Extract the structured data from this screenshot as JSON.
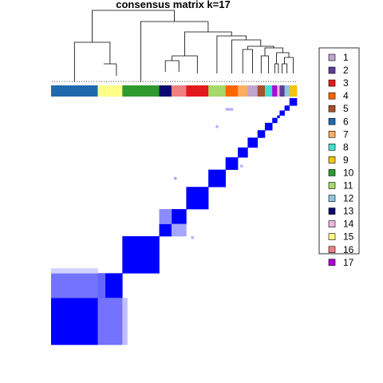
{
  "chart_data": {
    "type": "heatmap",
    "title": "consensus matrix k=17",
    "n_samples": 100,
    "value_range": [
      0,
      1
    ],
    "color_scale": {
      "low": "#ffffff",
      "high": "#0000ff"
    },
    "legend": {
      "placement": "right",
      "entries": [
        {
          "label": "1",
          "color": "#c2a5cf"
        },
        {
          "label": "2",
          "color": "#5e3c99"
        },
        {
          "label": "3",
          "color": "#e31a1c"
        },
        {
          "label": "4",
          "color": "#ff6600"
        },
        {
          "label": "5",
          "color": "#a6532b"
        },
        {
          "label": "6",
          "color": "#1f6aad"
        },
        {
          "label": "7",
          "color": "#fdae61"
        },
        {
          "label": "8",
          "color": "#40e0d0"
        },
        {
          "label": "9",
          "color": "#f1c40f"
        },
        {
          "label": "10",
          "color": "#2e9a2e"
        },
        {
          "label": "11",
          "color": "#a6d96a"
        },
        {
          "label": "12",
          "color": "#92c5de"
        },
        {
          "label": "13",
          "color": "#0a0a6e"
        },
        {
          "label": "14",
          "color": "#e7b8e0"
        },
        {
          "label": "15",
          "color": "#ffff88"
        },
        {
          "label": "16",
          "color": "#f08080"
        },
        {
          "label": "17",
          "color": "#b000d8"
        }
      ]
    },
    "cluster_order": [
      {
        "cluster": "6",
        "size": 19
      },
      {
        "cluster": "15",
        "size": 10
      },
      {
        "cluster": "10",
        "size": 15
      },
      {
        "cluster": "13",
        "size": 5
      },
      {
        "cluster": "16",
        "size": 6
      },
      {
        "cluster": "3",
        "size": 9
      },
      {
        "cluster": "11",
        "size": 7
      },
      {
        "cluster": "4",
        "size": 5
      },
      {
        "cluster": "7",
        "size": 4
      },
      {
        "cluster": "1",
        "size": 4
      },
      {
        "cluster": "5",
        "size": 3
      },
      {
        "cluster": "8",
        "size": 3
      },
      {
        "cluster": "17",
        "size": 2
      },
      {
        "cluster": "14",
        "size": 1
      },
      {
        "cluster": "2",
        "size": 2
      },
      {
        "cluster": "12",
        "size": 2
      },
      {
        "cluster": "9",
        "size": 3
      }
    ]
  }
}
